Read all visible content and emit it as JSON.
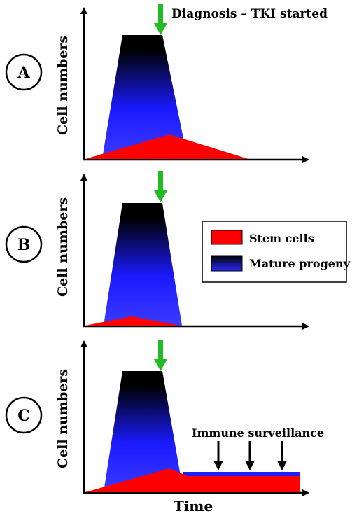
{
  "panels": [
    {
      "letter": "A",
      "ylabel": "Cell numbers",
      "annotation": "Diagnosis – TKI started"
    },
    {
      "letter": "B",
      "ylabel": "Cell numbers"
    },
    {
      "letter": "C",
      "ylabel": "Cell numbers",
      "annotation": "Immune surveillance"
    }
  ],
  "legend": {
    "items": [
      {
        "label": "Stem cells",
        "color": "#ff0000"
      },
      {
        "label": "Mature progeny",
        "color_top": "#000000",
        "color_bottom": "#0000ff"
      }
    ]
  },
  "xlabel": "Time",
  "colors": {
    "stem": "#ff0000",
    "progeny_top": "#000000",
    "progeny_bottom": "#0000ff",
    "arrow_green": "#22bb22",
    "axis": "#000000"
  }
}
